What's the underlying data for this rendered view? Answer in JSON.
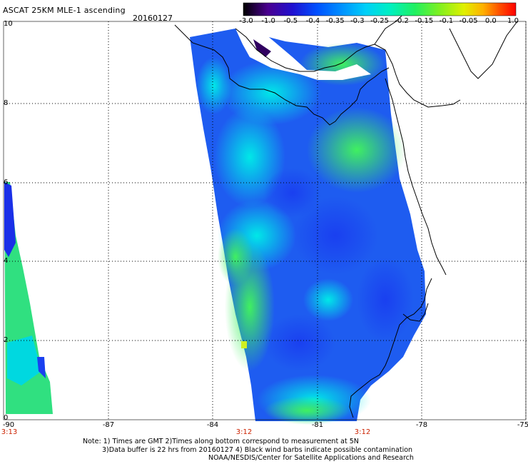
{
  "header": {
    "title": "ASCAT 25KM MLE-1 ascending",
    "date": "20160127"
  },
  "colorbar": {
    "labels": [
      "-3.0",
      "-1.0",
      "-0.5",
      "-0.4",
      "-0.35",
      "-0.3",
      "-0.25",
      "-0.2",
      "-0.15",
      "-0.1",
      "-0.05",
      "0.0",
      "1.0"
    ],
    "colors": [
      "#000000",
      "#6a00a0",
      "#1a00e6",
      "#0050ff",
      "#00a0ff",
      "#00e0f0",
      "#00f0a0",
      "#40f040",
      "#a0f020",
      "#f0f000",
      "#ffa000",
      "#ff4000",
      "#ff0000"
    ]
  },
  "axes": {
    "lat_labels": [
      "10",
      "8",
      "6",
      "4",
      "2",
      "0"
    ],
    "lon_labels": [
      "-90",
      "-87",
      "-84",
      "-81",
      "-78",
      "-75"
    ],
    "time_labels": [
      "3:13",
      "3:12",
      "3:12"
    ]
  },
  "notes": [
    "Note: 1) Times are GMT 2)Times along bottom correspond to measurement at 5N",
    "3)Data buffer is 22 hrs from 20160127 4) Black wind barbs indicate possible contamination",
    "NOAA/NESDIS/Center for Satellite Applications and Research"
  ]
}
